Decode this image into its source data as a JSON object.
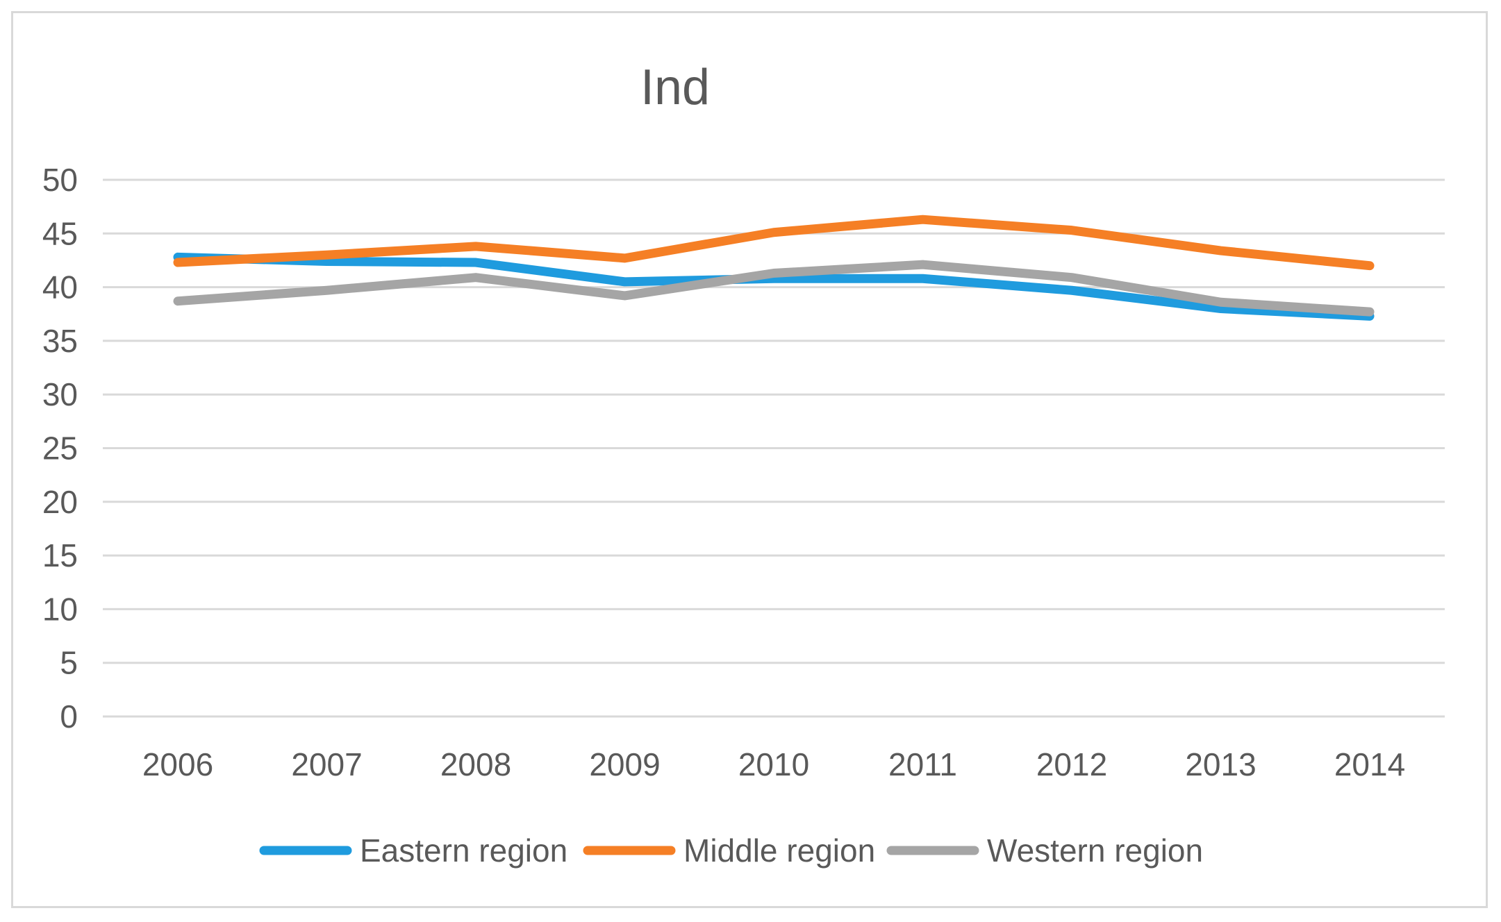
{
  "chart_data": {
    "type": "line",
    "title": "Ind",
    "xlabel": "",
    "ylabel": "",
    "categories": [
      "2006",
      "2007",
      "2008",
      "2009",
      "2010",
      "2011",
      "2012",
      "2013",
      "2014"
    ],
    "ylim": [
      0,
      50
    ],
    "yticks": [
      "0",
      "5",
      "10",
      "15",
      "20",
      "25",
      "30",
      "35",
      "40",
      "45",
      "50"
    ],
    "grid": true,
    "legend_position": "bottom",
    "series": [
      {
        "name": "Eastern region",
        "color": "#1f9bde",
        "values": [
          42.8,
          42.4,
          42.3,
          40.5,
          40.8,
          40.8,
          39.7,
          38.0,
          37.3
        ]
      },
      {
        "name": "Middle region",
        "color": "#f57f25",
        "values": [
          42.3,
          43.0,
          43.8,
          42.7,
          45.1,
          46.3,
          45.3,
          43.4,
          42.0
        ]
      },
      {
        "name": "Western region",
        "color": "#a5a5a5",
        "values": [
          38.7,
          39.7,
          40.9,
          39.2,
          41.3,
          42.1,
          40.9,
          38.6,
          37.7
        ]
      }
    ]
  }
}
